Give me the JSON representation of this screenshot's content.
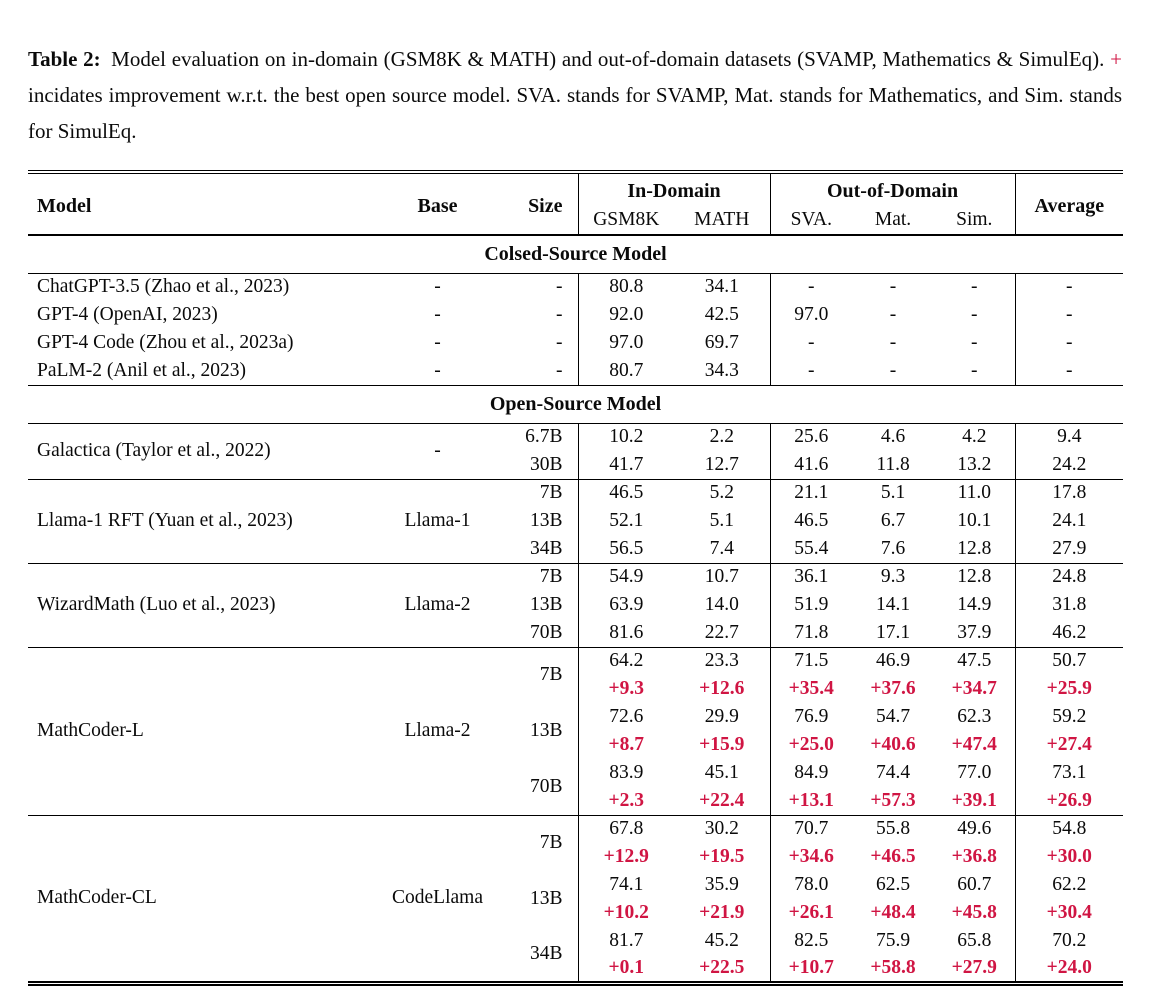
{
  "caption": {
    "label": "Table 2:",
    "text_before_plus": "Model evaluation on in-domain (GSM8K & MATH) and out-of-domain datasets (SVAMP, Mathematics & SimulEq).",
    "plus_sign": "+",
    "text_after_plus": "incidates improvement w.r.t. the best open source model. SVA. stands for SVAMP, Mat. stands for Mathematics, and Sim. stands for SimulEq."
  },
  "colors": {
    "accent_red": "#d01543",
    "text": "#0a0a0a",
    "rule": "#000000"
  },
  "table": {
    "header": {
      "model": "Model",
      "base": "Base",
      "size": "Size",
      "in_domain": "In-Domain",
      "out_of_domain": "Out-of-Domain",
      "average": "Average",
      "subcolumns": [
        "GSM8K",
        "MATH",
        "SVA.",
        "Mat.",
        "Sim."
      ]
    },
    "sections": [
      {
        "title": "Colsed-Source Model",
        "divided": false,
        "groups": [
          {
            "model": "ChatGPT-3.5 (Zhao et al., 2023)",
            "base": "-",
            "rows": [
              {
                "size": "-",
                "values": [
                  "80.8",
                  "34.1",
                  "-",
                  "-",
                  "-",
                  "-"
                ]
              }
            ]
          },
          {
            "model": "GPT-4 (OpenAI, 2023)",
            "base": "-",
            "rows": [
              {
                "size": "-",
                "values": [
                  "92.0",
                  "42.5",
                  "97.0",
                  "-",
                  "-",
                  "-"
                ]
              }
            ]
          },
          {
            "model": "GPT-4 Code (Zhou et al., 2023a)",
            "base": "-",
            "rows": [
              {
                "size": "-",
                "values": [
                  "97.0",
                  "69.7",
                  "-",
                  "-",
                  "-",
                  "-"
                ]
              }
            ]
          },
          {
            "model": "PaLM-2 (Anil et al., 2023)",
            "base": "-",
            "rows": [
              {
                "size": "-",
                "values": [
                  "80.7",
                  "34.3",
                  "-",
                  "-",
                  "-",
                  "-"
                ]
              }
            ]
          }
        ]
      },
      {
        "title": "Open-Source Model",
        "divided": true,
        "groups": [
          {
            "model": "Galactica (Taylor et al., 2022)",
            "base": "-",
            "rows": [
              {
                "size": "6.7B",
                "values": [
                  "10.2",
                  "2.2",
                  "25.6",
                  "4.6",
                  "4.2",
                  "9.4"
                ]
              },
              {
                "size": "30B",
                "values": [
                  "41.7",
                  "12.7",
                  "41.6",
                  "11.8",
                  "13.2",
                  "24.2"
                ]
              }
            ]
          },
          {
            "model": "Llama-1 RFT (Yuan et al., 2023)",
            "base": "Llama-1",
            "rows": [
              {
                "size": "7B",
                "values": [
                  "46.5",
                  "5.2",
                  "21.1",
                  "5.1",
                  "11.0",
                  "17.8"
                ]
              },
              {
                "size": "13B",
                "values": [
                  "52.1",
                  "5.1",
                  "46.5",
                  "6.7",
                  "10.1",
                  "24.1"
                ]
              },
              {
                "size": "34B",
                "values": [
                  "56.5",
                  "7.4",
                  "55.4",
                  "7.6",
                  "12.8",
                  "27.9"
                ]
              }
            ]
          },
          {
            "model": "WizardMath (Luo et al., 2023)",
            "base": "Llama-2",
            "rows": [
              {
                "size": "7B",
                "values": [
                  "54.9",
                  "10.7",
                  "36.1",
                  "9.3",
                  "12.8",
                  "24.8"
                ]
              },
              {
                "size": "13B",
                "values": [
                  "63.9",
                  "14.0",
                  "51.9",
                  "14.1",
                  "14.9",
                  "31.8"
                ]
              },
              {
                "size": "70B",
                "values": [
                  "81.6",
                  "22.7",
                  "71.8",
                  "17.1",
                  "37.9",
                  "46.2"
                ]
              }
            ]
          },
          {
            "model": "MathCoder-L",
            "base": "Llama-2",
            "rows": [
              {
                "size": "7B",
                "values": [
                  "64.2",
                  "23.3",
                  "71.5",
                  "46.9",
                  "47.5",
                  "50.7"
                ],
                "deltas": [
                  "+9.3",
                  "+12.6",
                  "+35.4",
                  "+37.6",
                  "+34.7",
                  "+25.9"
                ]
              },
              {
                "size": "13B",
                "values": [
                  "72.6",
                  "29.9",
                  "76.9",
                  "54.7",
                  "62.3",
                  "59.2"
                ],
                "deltas": [
                  "+8.7",
                  "+15.9",
                  "+25.0",
                  "+40.6",
                  "+47.4",
                  "+27.4"
                ]
              },
              {
                "size": "70B",
                "values": [
                  "83.9",
                  "45.1",
                  "84.9",
                  "74.4",
                  "77.0",
                  "73.1"
                ],
                "deltas": [
                  "+2.3",
                  "+22.4",
                  "+13.1",
                  "+57.3",
                  "+39.1",
                  "+26.9"
                ]
              }
            ]
          },
          {
            "model": "MathCoder-CL",
            "base": "CodeLlama",
            "rows": [
              {
                "size": "7B",
                "values": [
                  "67.8",
                  "30.2",
                  "70.7",
                  "55.8",
                  "49.6",
                  "54.8"
                ],
                "deltas": [
                  "+12.9",
                  "+19.5",
                  "+34.6",
                  "+46.5",
                  "+36.8",
                  "+30.0"
                ]
              },
              {
                "size": "13B",
                "values": [
                  "74.1",
                  "35.9",
                  "78.0",
                  "62.5",
                  "60.7",
                  "62.2"
                ],
                "deltas": [
                  "+10.2",
                  "+21.9",
                  "+26.1",
                  "+48.4",
                  "+45.8",
                  "+30.4"
                ]
              },
              {
                "size": "34B",
                "values": [
                  "81.7",
                  "45.2",
                  "82.5",
                  "75.9",
                  "65.8",
                  "70.2"
                ],
                "deltas": [
                  "+0.1",
                  "+22.5",
                  "+10.7",
                  "+58.8",
                  "+27.9",
                  "+24.0"
                ]
              }
            ]
          }
        ]
      }
    ]
  }
}
